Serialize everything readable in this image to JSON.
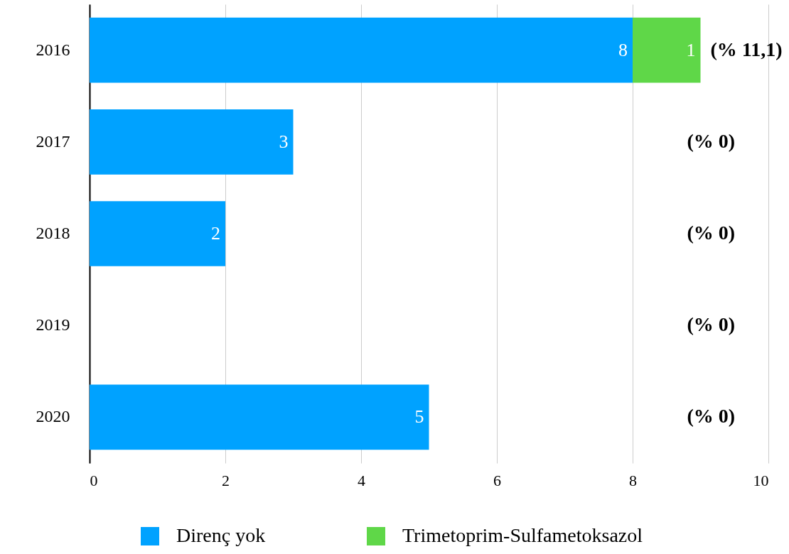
{
  "chart_data": {
    "type": "bar",
    "orientation": "horizontal",
    "stacked": true,
    "categories": [
      "2016",
      "2017",
      "2018",
      "2019",
      "2020"
    ],
    "series": [
      {
        "name": "Direnç yok",
        "color": "#00a2ff",
        "values": [
          8,
          3,
          2,
          null,
          5
        ],
        "value_labels": [
          "8",
          "3",
          "2",
          null,
          "5"
        ]
      },
      {
        "name": "Trimetoprim-Sulfametoksazol",
        "color": "#5fd748",
        "values": [
          1,
          null,
          null,
          null,
          null
        ],
        "value_labels": [
          "1",
          null,
          null,
          null,
          null
        ]
      }
    ],
    "xlim": [
      0,
      10
    ],
    "xticks": [
      0,
      2,
      4,
      6,
      8,
      10
    ],
    "grid": "x",
    "legend": "bottom",
    "annotations": [
      "(% 11,1)",
      "(% 0)",
      "(% 0)",
      "(% 0)",
      "(% 0)"
    ]
  }
}
